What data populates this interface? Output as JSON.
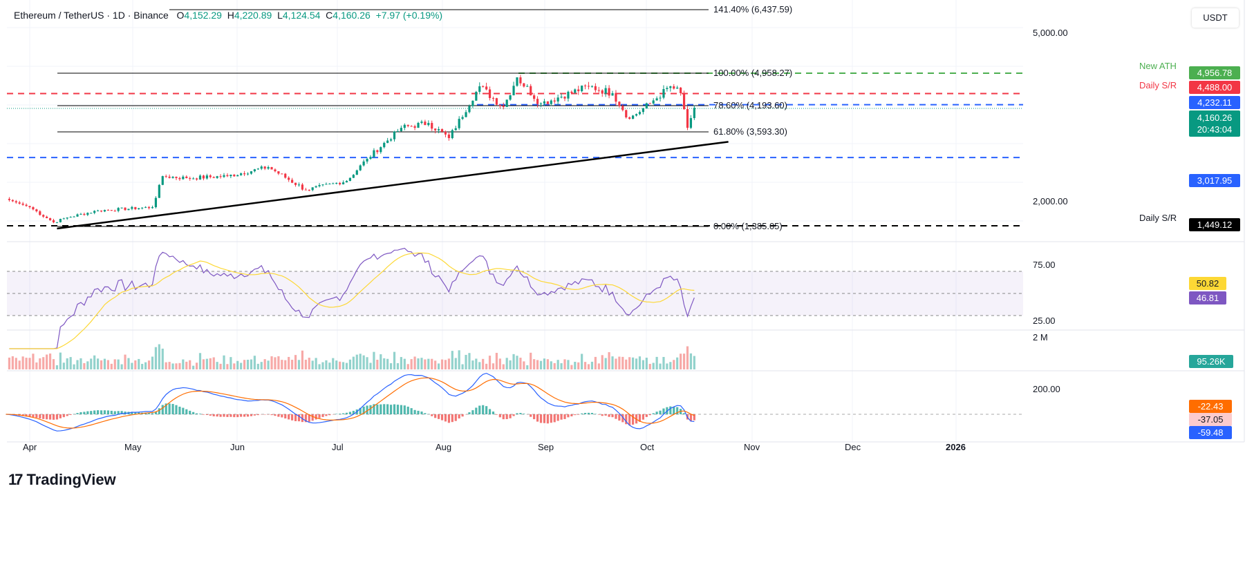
{
  "header": {
    "symbol": "Ethereum / TetherUS · 1D · Binance",
    "open_label": "O",
    "open": "4,152.29",
    "high_label": "H",
    "high": "4,220.89",
    "low_label": "L",
    "low": "4,124.54",
    "close_label": "C",
    "close": "4,160.26",
    "change": "+7.97 (+0.19%)"
  },
  "currency_button": "USDT",
  "logo": "TradingView",
  "price_tags": {
    "ath": "4,956.78",
    "daily_sr_top": "4,488.00",
    "blue_top": "4,232.11",
    "last": "4,160.26",
    "countdown": "20:43:04",
    "blue_low": "3,017.95",
    "daily_sr_bottom": "1,449.12"
  },
  "colors": {
    "up": "#089981",
    "down": "#f23645",
    "ath": "#4caf50",
    "sr_red": "#f23645",
    "sr_blue": "#2962ff",
    "rsi": "#7e57c2",
    "rsi_ma": "#fdd835",
    "macd": "#2962ff",
    "signal": "#ff6d00"
  },
  "annotations": {
    "new_ath": "New ATH",
    "daily_sr_1": "Daily S/R",
    "daily_sr_2": "Daily S/R"
  },
  "fib": [
    {
      "label": "141.40% (6,437.59)",
      "price": 6437.59
    },
    {
      "label": "100.00% (4,958.27)",
      "price": 4958.27
    },
    {
      "label": "78.60% (4,193.60)",
      "price": 4193.6
    },
    {
      "label": "61.80% (3,593.30)",
      "price": 3593.3
    },
    {
      "label": "0.00% (1,385.05)",
      "price": 1385.05
    }
  ],
  "axes": {
    "price_ticks": [
      "5,000.00",
      "2,000.00"
    ],
    "rsi_ticks": [
      "75.00",
      "25.00"
    ],
    "rsi_value": "46.81",
    "rsi_ma_value": "50.82",
    "volume_tick": "2 M",
    "volume_value": "95.26K",
    "macd_tick": "200.00",
    "macd_signal_value": "-22.43",
    "macd_hist_value": "-37.05",
    "macd_value": "-59.48",
    "time_ticks": [
      "Apr",
      "May",
      "Jun",
      "Jul",
      "Aug",
      "Sep",
      "Oct",
      "Nov",
      "Dec",
      "2026"
    ]
  },
  "chart_data": {
    "type": "candlestick",
    "title": "Ethereum / TetherUS · 1D · Binance",
    "y_scale": "linear",
    "ylim": [
      1300,
      6500
    ],
    "close_path": [
      [
        "2025-03-25",
        2068
      ],
      [
        "2025-04-01",
        1877
      ],
      [
        "2025-04-08",
        1528
      ],
      [
        "2025-04-12",
        1640
      ],
      [
        "2025-04-21",
        1798
      ],
      [
        "2025-05-07",
        1877
      ],
      [
        "2025-05-10",
        2590
      ],
      [
        "2025-05-17",
        2544
      ],
      [
        "2025-05-29",
        2590
      ],
      [
        "2025-06-10",
        2798
      ],
      [
        "2025-06-21",
        2274
      ],
      [
        "2025-07-03",
        2480
      ],
      [
        "2025-07-09",
        2988
      ],
      [
        "2025-07-19",
        3700
      ],
      [
        "2025-07-27",
        3813
      ],
      [
        "2025-08-02",
        3464
      ],
      [
        "2025-08-11",
        4655
      ],
      [
        "2025-08-18",
        4180
      ],
      [
        "2025-08-22",
        4861
      ],
      [
        "2025-08-29",
        4260
      ],
      [
        "2025-09-12",
        4655
      ],
      [
        "2025-09-19",
        4497
      ],
      [
        "2025-09-24",
        3908
      ],
      [
        "2025-09-30",
        4260
      ],
      [
        "2025-10-06",
        4655
      ],
      [
        "2025-10-09",
        4497
      ],
      [
        "2025-10-11",
        3700
      ],
      [
        "2025-10-13",
        4160
      ]
    ],
    "levels": {
      "ath": 4956.78,
      "daily_sr_top": 4488,
      "blue_top": 4232.11,
      "blue_low": 3017.95,
      "daily_sr_bottom": 1449.12
    },
    "trendline": [
      [
        "2025-04-09",
        1385
      ],
      [
        "2025-10-23",
        3380
      ]
    ],
    "rsi_bands": [
      30,
      50,
      70
    ]
  }
}
